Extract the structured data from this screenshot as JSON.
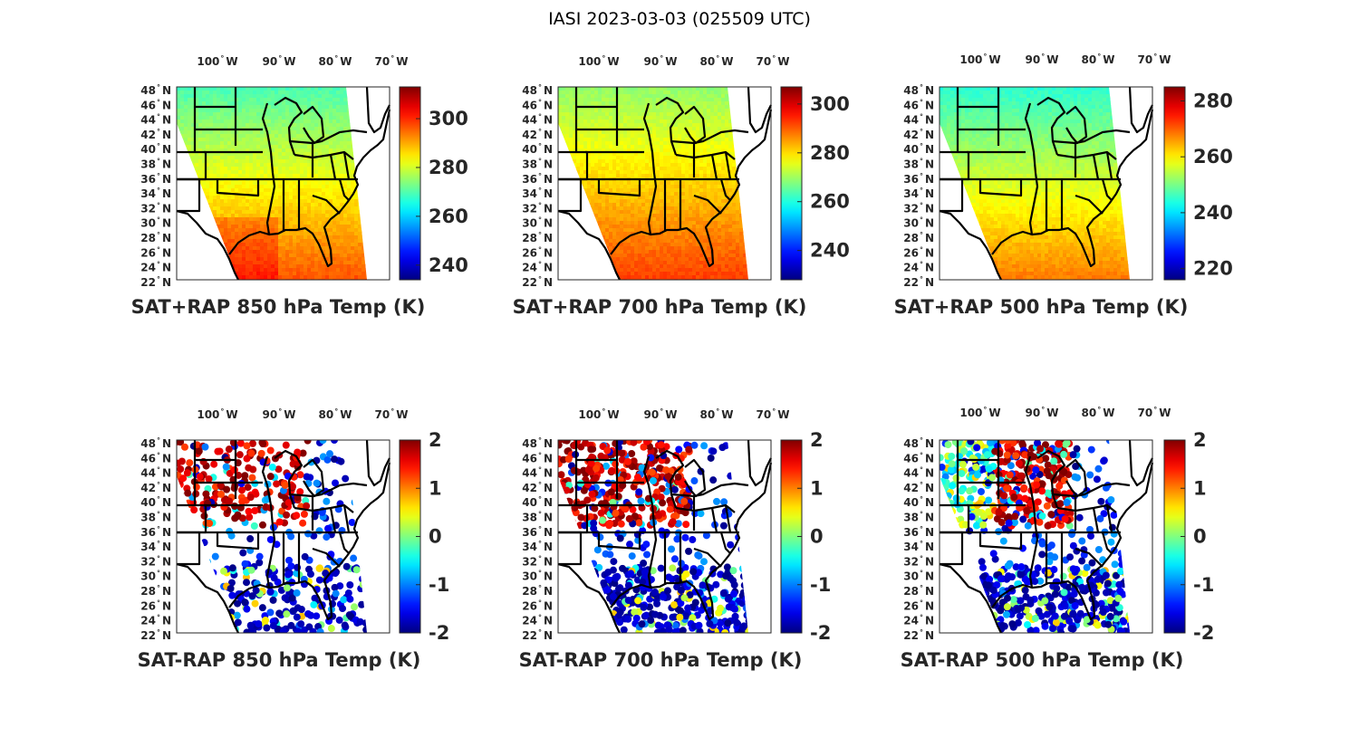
{
  "figure_title": "IASI 2023-03-03 (025509 UTC)",
  "colormap": "jet",
  "lon_ticks": [
    "100",
    "90",
    "80",
    "70"
  ],
  "lon_hemisphere": "W",
  "lat_ticks": [
    "48",
    "46",
    "44",
    "42",
    "40",
    "38",
    "36",
    "34",
    "32",
    "30",
    "28",
    "26",
    "24",
    "22"
  ],
  "lat_hemisphere": "N",
  "degree_symbol": "°",
  "panels": [
    {
      "title": "SAT+RAP 850 hPa Temp (K)",
      "clim": [
        234,
        313
      ],
      "cbar_ticks": [
        "240",
        "260",
        "280",
        "300"
      ]
    },
    {
      "title": "SAT+RAP 700 hPa Temp (K)",
      "clim": [
        228,
        307
      ],
      "cbar_ticks": [
        "240",
        "260",
        "280",
        "300"
      ]
    },
    {
      "title": "SAT+RAP 500 hPa Temp (K)",
      "clim": [
        216,
        285
      ],
      "cbar_ticks": [
        "220",
        "240",
        "260",
        "280"
      ]
    },
    {
      "title": "SAT-RAP 850 hPa Temp (K)",
      "clim": [
        -2,
        2
      ],
      "cbar_ticks": [
        "-2",
        "-1",
        "0",
        "1",
        "2"
      ]
    },
    {
      "title": "SAT-RAP 700 hPa Temp (K)",
      "clim": [
        -2,
        2
      ],
      "cbar_ticks": [
        "-2",
        "-1",
        "0",
        "1",
        "2"
      ]
    },
    {
      "title": "SAT-RAP 500 hPa Temp (K)",
      "clim": [
        -2,
        2
      ],
      "cbar_ticks": [
        "-2",
        "-1",
        "0",
        "1",
        "2"
      ]
    }
  ]
}
